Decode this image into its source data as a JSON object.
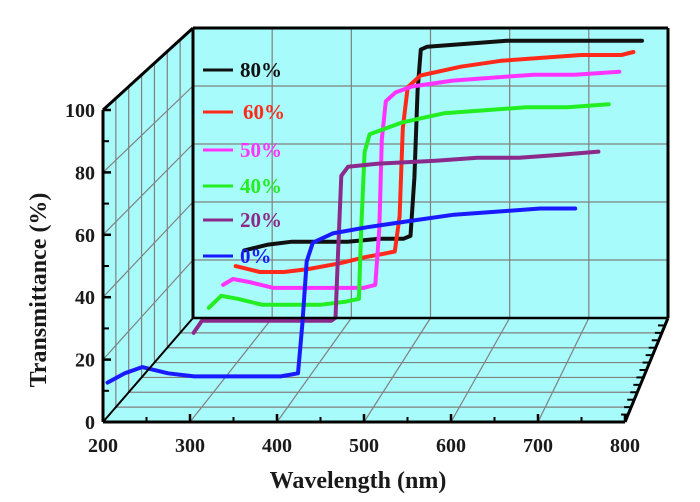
{
  "chart_data": {
    "type": "line",
    "style": "3d-wall",
    "title": "",
    "xlabel": "Wavelength (nm)",
    "ylabel": "Transmittance (%)",
    "xlim": [
      200,
      800
    ],
    "ylim": [
      0,
      100
    ],
    "xticks": [
      "200",
      "300",
      "400",
      "500",
      "600",
      "700",
      "800"
    ],
    "yticks": [
      "0",
      "20",
      "40",
      "60",
      "80",
      "100"
    ],
    "grid": true,
    "legend_position": "top-left",
    "colors": {
      "wall": "#a8fbfb",
      "grid": "#808080",
      "frame": "#000000"
    },
    "series": [
      {
        "name": "80%",
        "color": "#111111",
        "points": [
          [
            270,
            25
          ],
          [
            300,
            27
          ],
          [
            330,
            28
          ],
          [
            360,
            28
          ],
          [
            400,
            28
          ],
          [
            440,
            29
          ],
          [
            460,
            29
          ],
          [
            470,
            29
          ],
          [
            479,
            30
          ],
          [
            484,
            50
          ],
          [
            488,
            80
          ],
          [
            492,
            94
          ],
          [
            500,
            95
          ],
          [
            550,
            96
          ],
          [
            600,
            97
          ],
          [
            650,
            97
          ],
          [
            700,
            97
          ],
          [
            750,
            97
          ],
          [
            770,
            97
          ]
        ]
      },
      {
        "name": "60%",
        "color": "#ff2a1a",
        "points": [
          [
            270,
            23
          ],
          [
            300,
            21
          ],
          [
            330,
            21
          ],
          [
            360,
            22
          ],
          [
            400,
            24
          ],
          [
            430,
            26
          ],
          [
            450,
            27
          ],
          [
            468,
            28
          ],
          [
            474,
            40
          ],
          [
            478,
            70
          ],
          [
            484,
            84
          ],
          [
            500,
            88
          ],
          [
            550,
            91
          ],
          [
            600,
            93
          ],
          [
            650,
            94
          ],
          [
            700,
            95
          ],
          [
            750,
            95
          ],
          [
            765,
            96
          ]
        ]
      },
      {
        "name": "50%",
        "color": "#ff33ff",
        "points": [
          [
            268,
            21
          ],
          [
            280,
            23
          ],
          [
            300,
            22
          ],
          [
            330,
            20
          ],
          [
            360,
            20
          ],
          [
            400,
            20
          ],
          [
            440,
            20
          ],
          [
            455,
            21
          ],
          [
            460,
            40
          ],
          [
            463,
            70
          ],
          [
            468,
            83
          ],
          [
            480,
            86
          ],
          [
            500,
            88
          ],
          [
            550,
            90
          ],
          [
            600,
            91
          ],
          [
            650,
            92
          ],
          [
            700,
            92
          ],
          [
            755,
            93
          ]
        ]
      },
      {
        "name": "40%",
        "color": "#22ee22",
        "points": [
          [
            265,
            18
          ],
          [
            280,
            22
          ],
          [
            300,
            21
          ],
          [
            330,
            19
          ],
          [
            360,
            19
          ],
          [
            400,
            19
          ],
          [
            430,
            20
          ],
          [
            447,
            21
          ],
          [
            450,
            45
          ],
          [
            454,
            70
          ],
          [
            460,
            76
          ],
          [
            480,
            78
          ],
          [
            500,
            80
          ],
          [
            550,
            83
          ],
          [
            600,
            84
          ],
          [
            650,
            85
          ],
          [
            700,
            85
          ],
          [
            750,
            86
          ]
        ]
      },
      {
        "name": "20%",
        "color": "#8b2a8b",
        "points": [
          [
            260,
            14
          ],
          [
            270,
            18
          ],
          [
            300,
            18
          ],
          [
            330,
            18
          ],
          [
            360,
            18
          ],
          [
            400,
            18
          ],
          [
            425,
            18
          ],
          [
            430,
            19
          ],
          [
            433,
            40
          ],
          [
            437,
            66
          ],
          [
            445,
            69
          ],
          [
            480,
            70
          ],
          [
            550,
            71
          ],
          [
            600,
            72
          ],
          [
            650,
            72
          ],
          [
            700,
            73
          ],
          [
            745,
            74
          ]
        ]
      },
      {
        "name": "0%",
        "color": "#1a1aff",
        "points": [
          [
            200,
            11
          ],
          [
            220,
            14
          ],
          [
            240,
            16
          ],
          [
            270,
            14
          ],
          [
            300,
            13
          ],
          [
            350,
            13
          ],
          [
            400,
            13
          ],
          [
            420,
            14
          ],
          [
            425,
            30
          ],
          [
            430,
            50
          ],
          [
            437,
            56
          ],
          [
            460,
            59
          ],
          [
            500,
            61
          ],
          [
            550,
            63
          ],
          [
            600,
            65
          ],
          [
            650,
            66
          ],
          [
            700,
            67
          ],
          [
            740,
            67
          ]
        ]
      }
    ]
  }
}
